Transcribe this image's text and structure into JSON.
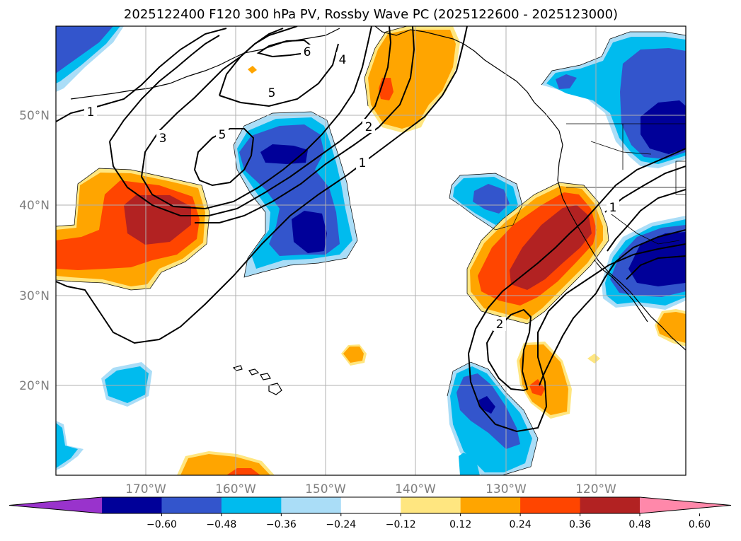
{
  "title": "2025122400 F120 300 hPa PV, Rossby Wave PC (2025122600 - 2025123000)",
  "map": {
    "projection": "PlateCarree",
    "lon_range": [
      -180,
      -110
    ],
    "lat_range": [
      10,
      60
    ],
    "gridlines": true,
    "lat_ticks": [
      {
        "value": 50,
        "label": "50°N"
      },
      {
        "value": 40,
        "label": "40°N"
      },
      {
        "value": 30,
        "label": "30°N"
      },
      {
        "value": 20,
        "label": "20°N"
      }
    ],
    "lon_ticks": [
      {
        "value": -170,
        "label": "170°W"
      },
      {
        "value": -160,
        "label": "160°W"
      },
      {
        "value": -150,
        "label": "150°W"
      },
      {
        "value": -140,
        "label": "140°W"
      },
      {
        "value": -130,
        "label": "130°W"
      },
      {
        "value": -120,
        "label": "120°W"
      }
    ],
    "pv_contour_labels": [
      "1",
      "3",
      "5",
      "5",
      "6",
      "4",
      "2",
      "1",
      "1",
      "2"
    ]
  },
  "colorbar": {
    "levels": [
      -0.6,
      -0.48,
      -0.36,
      -0.24,
      -0.12,
      0.12,
      0.24,
      0.36,
      0.48,
      0.6
    ],
    "tick_labels": [
      "−0.60",
      "−0.48",
      "−0.36",
      "−0.24",
      "−0.12",
      "0.12",
      "0.24",
      "0.36",
      "0.48",
      "0.60"
    ],
    "colors": [
      "#9933cc",
      "#000099",
      "#3355cc",
      "#00bbee",
      "#aaddf7",
      "#ffffff",
      "#ffe680",
      "#ffa500",
      "#ff4500",
      "#b22222",
      "#ff88aa"
    ],
    "extend": "both"
  }
}
